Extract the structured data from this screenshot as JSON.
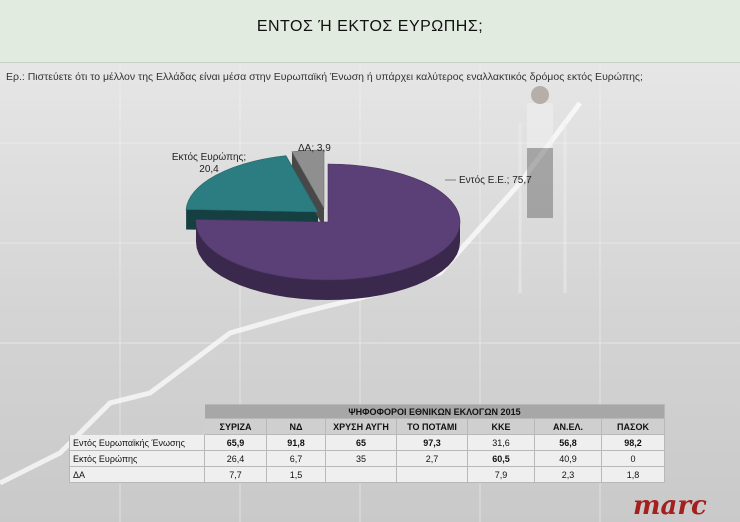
{
  "page": {
    "title": "ΕΝΤΟΣ Ή ΕΚΤΟΣ ΕΥΡΩΠΗΣ;",
    "question": "Ερ.: Πιστεύετε ότι το μέλλον της Ελλάδας είναι μέσα στην Ευρωπαϊκή Ένωση ή υπάρχει  καλύτερος  εναλλακτικός δρόμος εκτός Ευρώπης;"
  },
  "chart_data": {
    "type": "pie",
    "slices": [
      {
        "label": "Εντός Ε.Ε.",
        "value": 75.7,
        "display": "Εντός Ε.Ε.; 75,7",
        "color": "#5b3f77"
      },
      {
        "label": "Εκτός Ευρώπης",
        "value": 20.4,
        "display_l1": "Εκτός Ευρώπης;",
        "display_l2": "20,4",
        "color": "#2b7d82"
      },
      {
        "label": "ΔΑ",
        "value": 3.9,
        "display": "ΔΑ; 3,9",
        "color": "#8f8f8f"
      }
    ]
  },
  "table": {
    "group_header": "ΨΗΦΟΦΟΡΟΙ ΕΘΝΙΚΩΝ ΕΚΛΟΓΩΝ 2015",
    "parties": [
      "ΣΥΡΙΖΑ",
      "ΝΔ",
      "ΧΡΥΣΗ ΑΥΓΗ",
      "ΤΟ ΠΟΤΑΜΙ",
      "ΚΚΕ",
      "ΑΝ.ΕΛ.",
      "ΠΑΣΟΚ"
    ],
    "rows": [
      {
        "label": "Εντός Ευρωπαϊκής Ένωσης",
        "values": [
          "65,9",
          "91,8",
          "65",
          "97,3",
          "31,6",
          "56,8",
          "98,2"
        ],
        "bold": [
          true,
          true,
          true,
          true,
          false,
          true,
          true
        ]
      },
      {
        "label": "Εκτός Ευρώπης",
        "values": [
          "26,4",
          "6,7",
          "35",
          "2,7",
          "60,5",
          "40,9",
          "0"
        ],
        "bold": [
          false,
          false,
          false,
          false,
          true,
          false,
          false
        ]
      },
      {
        "label": "ΔΑ",
        "values": [
          "7,7",
          "1,5",
          "",
          "",
          "7,9",
          "2,3",
          "1,8"
        ],
        "bold": [
          false,
          false,
          false,
          false,
          false,
          false,
          false
        ]
      }
    ]
  },
  "logo": "marc"
}
